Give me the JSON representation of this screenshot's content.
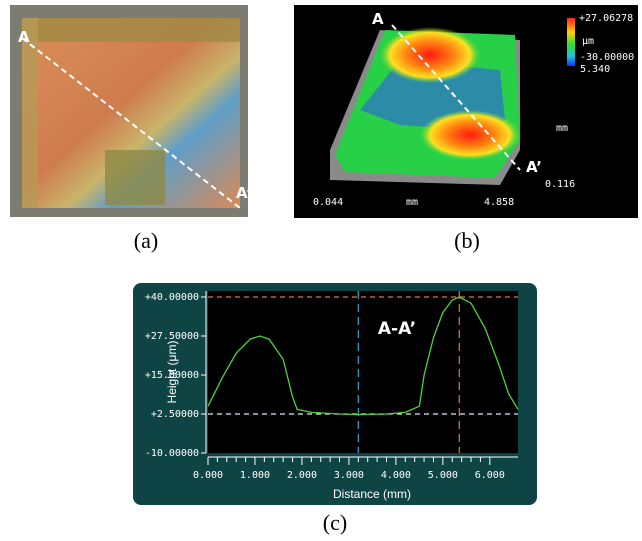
{
  "panels": {
    "a": {
      "caption": "(a)",
      "start": "A",
      "end": "A’"
    },
    "b": {
      "caption": "(b)",
      "start": "A",
      "end": "A’",
      "scale_max": "+27.06278",
      "scale_unit": "μm",
      "scale_min": "-30.00000",
      "depth_max": "5.340",
      "depth_unit": "mm",
      "depth_min": "0.116",
      "x_min": "0.044",
      "x_unit": "mm",
      "x_max": "4.858"
    },
    "c": {
      "caption": "(c)"
    }
  },
  "chart_data": {
    "type": "line",
    "annotation": "A-A’",
    "x_label": "Distance (mm)",
    "y_label": "Height (μm)",
    "x": [
      0,
      0.3,
      0.6,
      0.9,
      1.1,
      1.3,
      1.6,
      1.8,
      1.9,
      2.2,
      2.8,
      3.2,
      3.8,
      4.2,
      4.5,
      4.6,
      4.8,
      5.0,
      5.2,
      5.35,
      5.6,
      5.9,
      6.2,
      6.4,
      6.6
    ],
    "values": [
      5,
      14,
      22,
      26.5,
      27.5,
      26.5,
      20,
      8,
      4,
      3,
      2.5,
      2.3,
      2.5,
      3,
      5,
      15,
      27,
      35,
      39,
      40,
      38,
      30,
      18,
      9,
      4
    ],
    "color": "#4fd23a",
    "xlim": [
      0,
      6.6
    ],
    "ylim": [
      -10,
      40
    ],
    "xticks": [
      {
        "value": 0,
        "label": "0.000"
      },
      {
        "value": 1,
        "label": "1.000"
      },
      {
        "value": 2,
        "label": "2.000"
      },
      {
        "value": 3,
        "label": "3.000"
      },
      {
        "value": 4,
        "label": "4.000"
      },
      {
        "value": 5,
        "label": "5.000"
      },
      {
        "value": 6,
        "label": "6.000"
      }
    ],
    "yticks": [
      {
        "value": 40,
        "label": "+40.00000"
      },
      {
        "value": 27.5,
        "label": "+27.50000"
      },
      {
        "value": 15,
        "label": "+15.00000"
      },
      {
        "value": 2.5,
        "label": "+2.50000"
      },
      {
        "value": -10,
        "label": "-10.00000"
      }
    ],
    "cursor_x": [
      3.2,
      5.35
    ],
    "cursor_y": [
      2.5,
      40
    ]
  }
}
